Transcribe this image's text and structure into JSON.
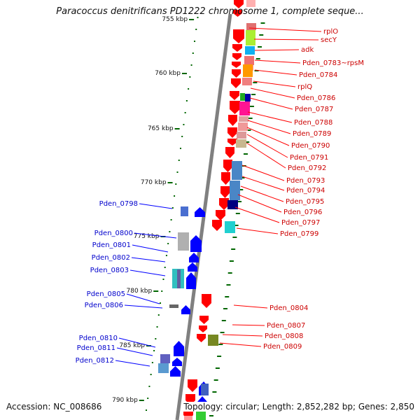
{
  "title": "Paracoccus denitrificans PD1222 chromosome 1, complete seque...",
  "accession": "Accession: NC_008686",
  "topology": "Topology: circular; Length: 2,852,282 bp; Genes: 2,850",
  "colors": {
    "forward_gene": "#ff0000",
    "reverse_gene": "#0000ff",
    "forward_label": "#cc0000",
    "reverse_label": "#0000cc",
    "backbone": "#808080",
    "tick": "#006600"
  },
  "scale_labels": [
    "755 kbp",
    "760 kbp",
    "765 kbp",
    "770 kbp",
    "775 kbp",
    "780 kbp",
    "785 kbp",
    "790 kbp"
  ],
  "forward_genes": [
    "rplO",
    "secY",
    "adk",
    "Pden_0783~rpsM",
    "Pden_0784",
    "rplQ",
    "Pden_0786",
    "Pden_0787",
    "Pden_0788",
    "Pden_0789",
    "Pden_0790",
    "Pden_0791",
    "Pden_0792",
    "Pden_0793",
    "Pden_0794",
    "Pden_0795",
    "Pden_0796",
    "Pden_0797",
    "Pden_0799",
    "Pden_0804",
    "Pden_0807",
    "Pden_0808",
    "Pden_0809"
  ],
  "reverse_genes": [
    "Pden_0798",
    "Pden_0800",
    "Pden_0801",
    "Pden_0802",
    "Pden_0803",
    "Pden_0805",
    "Pden_0806",
    "Pden_0810",
    "Pden_0811",
    "Pden_0812"
  ]
}
